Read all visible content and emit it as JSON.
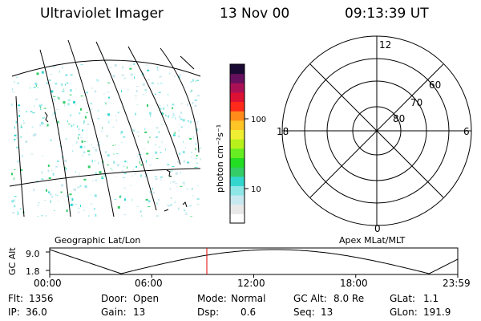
{
  "header": {
    "title": "Ultraviolet Imager",
    "date": "13 Nov 00",
    "time": "09:13:39 UT"
  },
  "colorbar": {
    "label": "photon cm⁻²s⁻¹",
    "ticks": [
      "100",
      "10"
    ],
    "colors": [
      "#ffffff",
      "#e8e8e8",
      "#c8e8f0",
      "#8ee6e6",
      "#33d6cf",
      "#33cc66",
      "#22dd22",
      "#66ee22",
      "#b8f01c",
      "#f0ee33",
      "#ffc426",
      "#ff8c1a",
      "#ff2a1a",
      "#dd1133",
      "#aa1155",
      "#66105e",
      "#1a0a33"
    ]
  },
  "polar": {
    "mlt_labels": {
      "top": "12",
      "bottom": "0",
      "left": "18",
      "right": "6"
    },
    "lat_labels": [
      "60",
      "70",
      "80"
    ]
  },
  "timeline": {
    "left_label": "Geographic Lat/Lon",
    "right_label": "Apex MLat/MLT",
    "y_axis_title": "GC Alt",
    "y_ticks": [
      "9.0",
      "1.8"
    ],
    "x_ticks": [
      "00:00",
      "06:00",
      "12:00",
      "18:00",
      "23:59"
    ],
    "current_time_fraction": 0.385
  },
  "footer": {
    "rows": [
      [
        {
          "label": "Flt:",
          "value": "1356"
        },
        {
          "label": "Door:",
          "value": "Open"
        },
        {
          "label": "Mode:",
          "value": "Normal"
        },
        {
          "label": "GC Alt:",
          "value": "8.0 Re"
        },
        {
          "label": "GLat:",
          "value": "1.1"
        }
      ],
      [
        {
          "label": "IP:",
          "value": "36.0"
        },
        {
          "label": "Gain:",
          "value": "13"
        },
        {
          "label": "Dsp:",
          "value": "0.6"
        },
        {
          "label": "Seq:",
          "value": "13"
        },
        {
          "label": "GLon:",
          "value": "191.9"
        }
      ]
    ]
  }
}
